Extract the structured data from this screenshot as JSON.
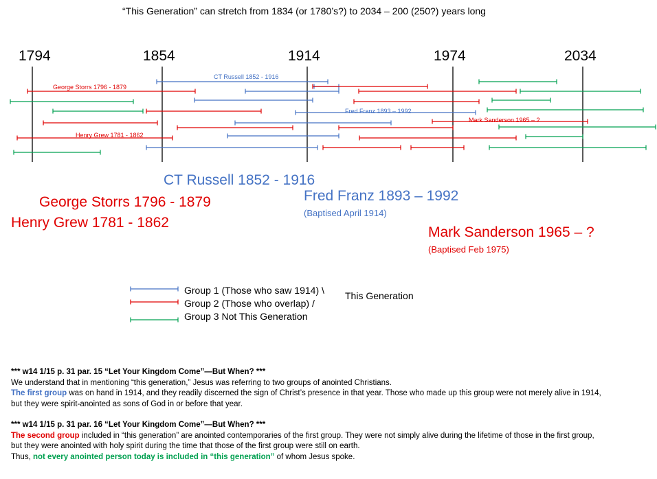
{
  "title": "“This Generation” can stretch from 1834 (or 1780’s?) to 2034 – 200 (250?) years long",
  "years": [
    "1794",
    "1854",
    "1914",
    "1974",
    "2034"
  ],
  "colors": {
    "group1": "#4472C4",
    "group2": "#E00000",
    "group3": "#00A050"
  },
  "timeline_labels": {
    "ct_russell": "CT Russell 1852 - 1916",
    "george_storrs": "George Storrs 1796 - 1879",
    "fred_franz": "Fred Franz 1893 – 1992",
    "mark_sanderson": "Mark Sanderson 1965 – ?",
    "henry_grew": "Henry Grew 1781 - 1862"
  },
  "callouts": {
    "ct_russell": "CT Russell 1852 - 1916",
    "george_storrs": "George Storrs 1796 - 1879",
    "henry_grew": "Henry Grew 1781 - 1862",
    "fred_franz": "Fred Franz 1893 – 1992",
    "fred_franz_note": "(Baptised April 1914)",
    "mark_sanderson": "Mark Sanderson 1965 – ?",
    "mark_sanderson_note": "(Baptised Feb 1975)"
  },
  "legend": {
    "group1": "Group 1  (Those who saw 1914)  \\",
    "group2": "Group 2  (Those who overlap)     /",
    "group3": "Group 3  Not This Generation",
    "bracket_label": "This Generation"
  },
  "quote1": {
    "heading": "*** w14 1/15 p. 31 par. 15 “Let Your Kingdom  Come”—But When? ***",
    "line1": "We understand that in mentioning “this generation,” Jesus was referring to two groups of anointed Christians.",
    "highlight": "The first group",
    "line2_rest": " was on hand in 1914, and they readily discerned the sign of Christ’s presence in that year. Those who made up this group were not merely alive in 1914,",
    "line3": "but they were spirit-anointed as sons of God in or before that year."
  },
  "quote2": {
    "heading": "*** w14 1/15 p. 31 par. 16 “Let Your Kingdom  Come”—But When? ***",
    "highlight": "The second group",
    "line1_rest": " included in “this generation” are anointed contemporaries of the first group. They were not simply alive during the lifetime of those in the first group,",
    "line2": "but they were anointed with holy spirit during the time that those of the first group were still on earth.",
    "line3_start": "Thus, ",
    "line3_highlight": "not every anointed person today is included  in “this generation”",
    "line3_end": " of whom Jesus spoke."
  }
}
